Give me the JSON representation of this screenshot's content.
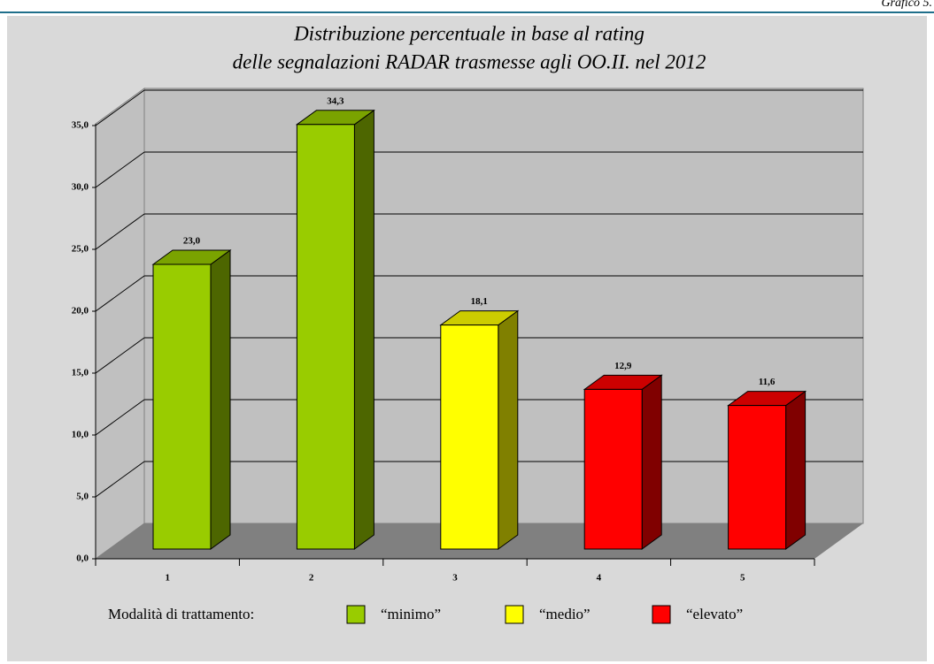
{
  "chart_data": {
    "type": "bar3d",
    "corner_label": "Grafico 5.",
    "title": [
      "Distribuzione percentuale in base al rating",
      "delle segnalazioni RADAR trasmesse agli OO.II. nel 2012"
    ],
    "categories": [
      "1",
      "2",
      "3",
      "4",
      "5"
    ],
    "values": [
      23.0,
      34.3,
      18.1,
      12.9,
      11.6
    ],
    "value_labels": [
      "23,0",
      "34,3",
      "18,1",
      "12,9",
      "11,6"
    ],
    "colors": [
      "#99cc00",
      "#99cc00",
      "#ffff00",
      "#ff0000",
      "#ff0000"
    ],
    "ylim": [
      0,
      35
    ],
    "yticks": [
      {
        "value": 0,
        "label": "0,0"
      },
      {
        "value": 5,
        "label": "5,0"
      },
      {
        "value": 10,
        "label": "10,0"
      },
      {
        "value": 15,
        "label": "15,0"
      },
      {
        "value": 20,
        "label": "20,0"
      },
      {
        "value": 25,
        "label": "25,0"
      },
      {
        "value": 30,
        "label": "30,0"
      },
      {
        "value": 35,
        "label": "35,0"
      }
    ],
    "grid": true,
    "legend": {
      "title": "Modalità di trattamento:",
      "items": [
        {
          "label": "“minimo”",
          "color": "#99cc00"
        },
        {
          "label": "“medio”",
          "color": "#ffff00"
        },
        {
          "label": "“elevato”",
          "color": "#ff0000"
        }
      ]
    }
  }
}
